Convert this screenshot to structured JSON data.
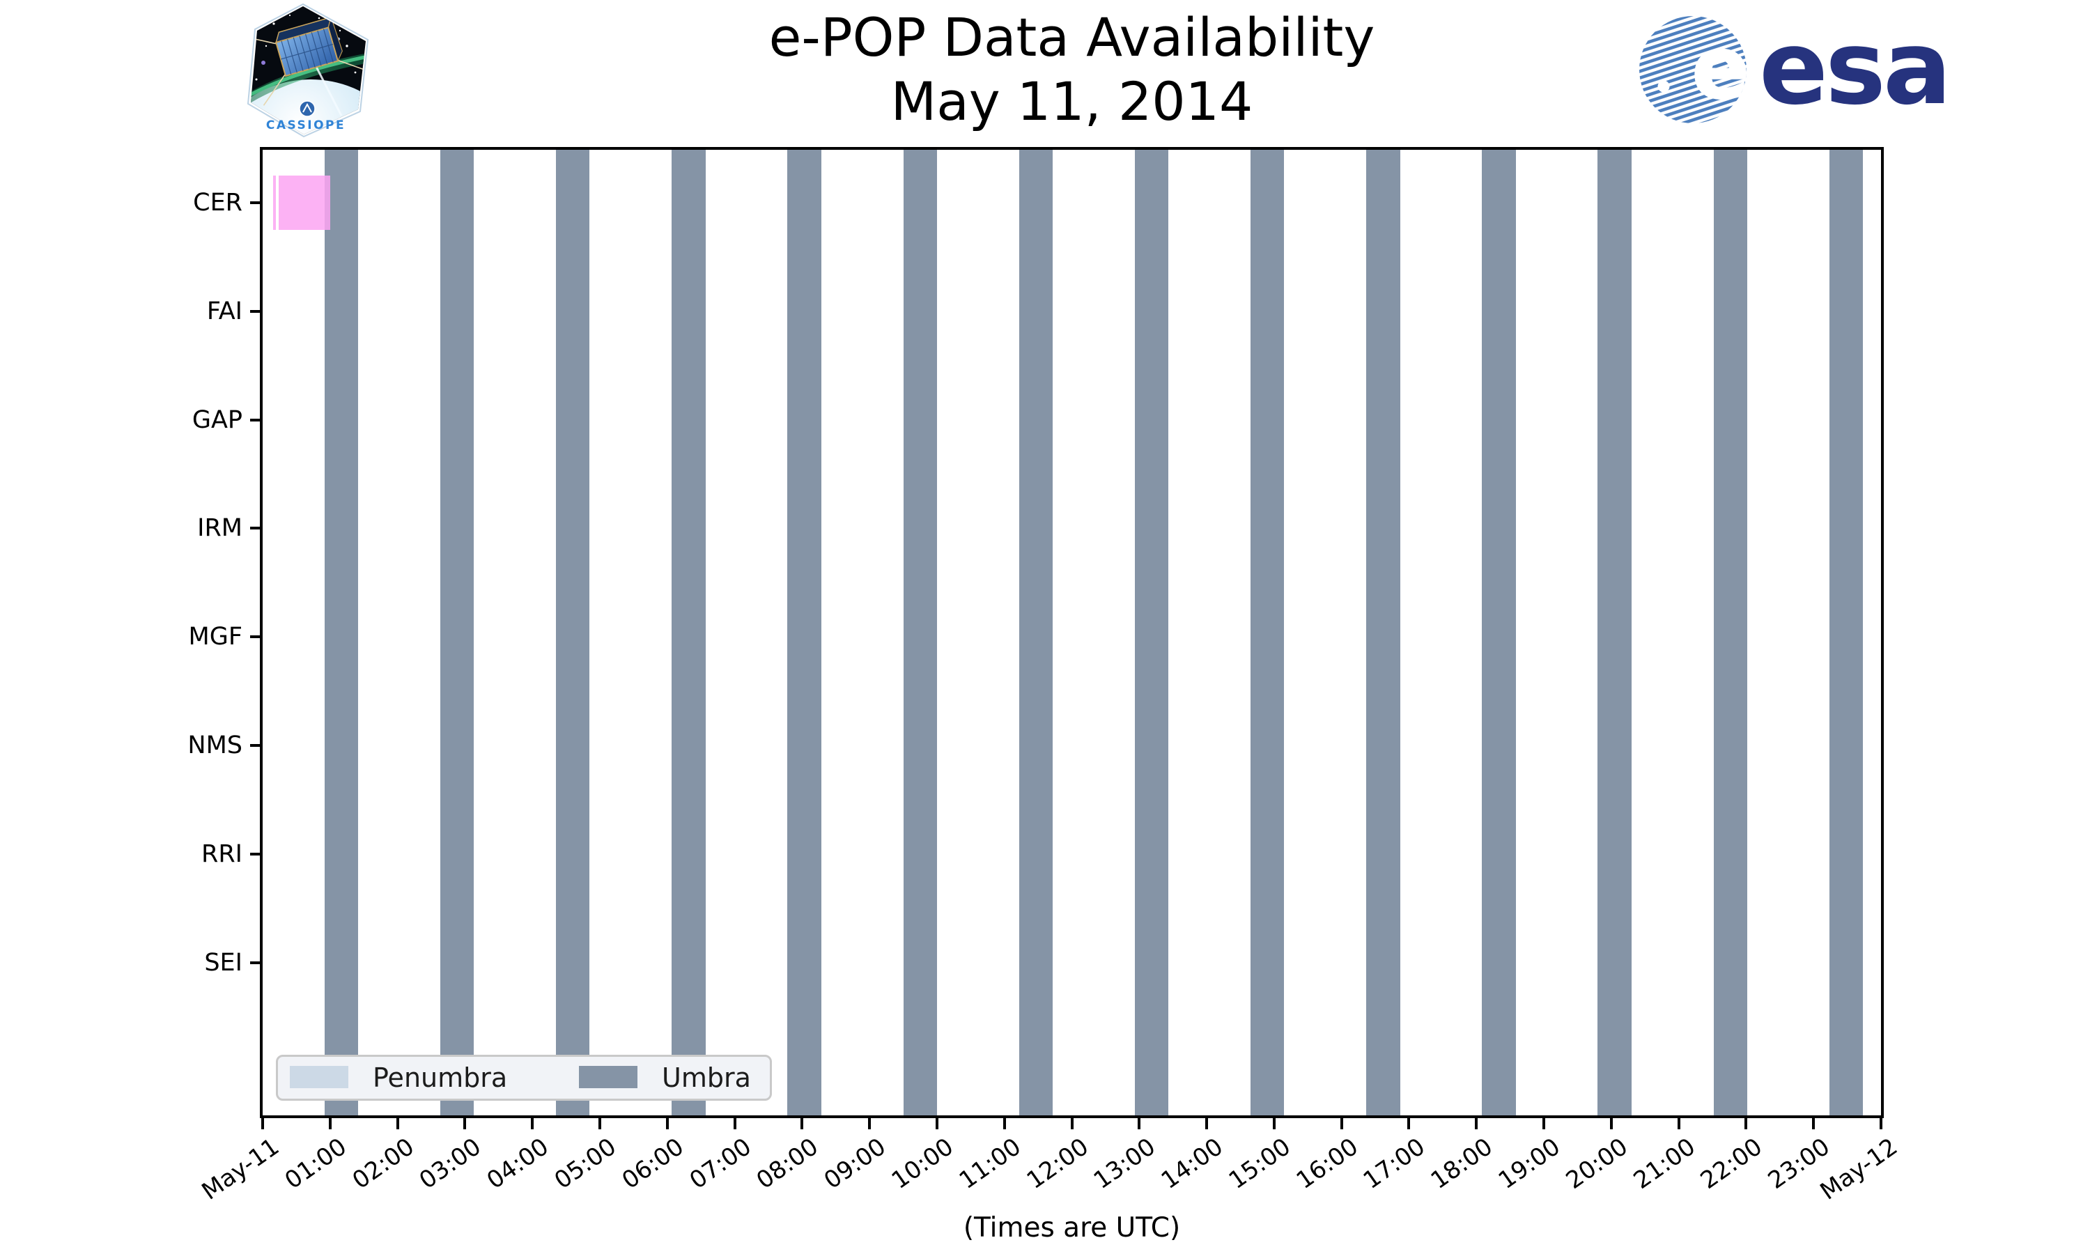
{
  "logos": {
    "cassiope_text": "CASSIOPE",
    "esa_text": "esa",
    "esa_ball_letter": "e",
    "esa_navy": "#26337e",
    "esa_stripe_blue": "#4d7fbe"
  },
  "chart_data": {
    "type": "timeline",
    "title": "e-POP Data Availability",
    "subtitle": "May 11, 2014",
    "xlabel": "(Times are UTC)",
    "time_zone": "UTC",
    "x_range": [
      "May-11 00:00",
      "May-12 00:00"
    ],
    "x_tick_labels": [
      "May-11",
      "01:00",
      "02:00",
      "03:00",
      "04:00",
      "05:00",
      "06:00",
      "07:00",
      "08:00",
      "09:00",
      "10:00",
      "11:00",
      "12:00",
      "13:00",
      "14:00",
      "15:00",
      "16:00",
      "17:00",
      "18:00",
      "19:00",
      "20:00",
      "21:00",
      "22:00",
      "23:00",
      "May-12"
    ],
    "rows": [
      "CER",
      "FAI",
      "GAP",
      "IRM",
      "MGF",
      "NMS",
      "RRI",
      "SEI"
    ],
    "legend": [
      {
        "label": "Penumbra",
        "color": "#ccd9e6"
      },
      {
        "label": "Umbra",
        "color": "#8594a6"
      }
    ],
    "legend_position": "lower left",
    "grid": false,
    "umbra_color": "#8594a6",
    "umbra_intervals": [
      {
        "start": "00:55",
        "end": "01:25"
      },
      {
        "start": "02:38",
        "end": "03:08"
      },
      {
        "start": "04:21",
        "end": "04:51"
      },
      {
        "start": "06:04",
        "end": "06:34"
      },
      {
        "start": "07:47",
        "end": "08:17"
      },
      {
        "start": "09:30",
        "end": "10:00"
      },
      {
        "start": "11:13",
        "end": "11:43"
      },
      {
        "start": "12:56",
        "end": "13:26"
      },
      {
        "start": "14:39",
        "end": "15:09"
      },
      {
        "start": "16:22",
        "end": "16:52"
      },
      {
        "start": "18:05",
        "end": "18:35"
      },
      {
        "start": "19:48",
        "end": "20:18"
      },
      {
        "start": "21:31",
        "end": "22:01"
      },
      {
        "start": "23:14",
        "end": "23:44"
      }
    ],
    "penumbra_intervals": [],
    "availability": [
      {
        "instrument": "CER",
        "start": "00:09",
        "end": "00:12",
        "color": "#fca4f2"
      },
      {
        "instrument": "CER",
        "start": "00:14",
        "end": "01:00",
        "color": "#fca4f2"
      }
    ]
  }
}
